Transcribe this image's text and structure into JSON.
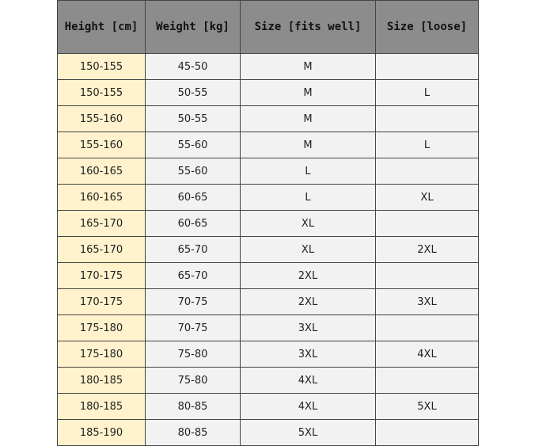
{
  "headers": [
    "Height [cm]",
    "Weight [kg]",
    "Size [fits well]",
    "Size [loose]"
  ],
  "rows": [
    [
      "150-155",
      "45-50",
      "M",
      ""
    ],
    [
      "150-155",
      "50-55",
      "M",
      "L"
    ],
    [
      "155-160",
      "50-55",
      "M",
      ""
    ],
    [
      "155-160",
      "55-60",
      "M",
      "L"
    ],
    [
      "160-165",
      "55-60",
      "L",
      ""
    ],
    [
      "160-165",
      "60-65",
      "L",
      "XL"
    ],
    [
      "165-170",
      "60-65",
      "XL",
      ""
    ],
    [
      "165-170",
      "65-70",
      "XL",
      "2XL"
    ],
    [
      "170-175",
      "65-70",
      "2XL",
      ""
    ],
    [
      "170-175",
      "70-75",
      "2XL",
      "3XL"
    ],
    [
      "175-180",
      "70-75",
      "3XL",
      ""
    ],
    [
      "175-180",
      "75-80",
      "3XL",
      "4XL"
    ],
    [
      "180-185",
      "75-80",
      "4XL",
      ""
    ],
    [
      "180-185",
      "80-85",
      "4XL",
      "5XL"
    ],
    [
      "185-190",
      "80-85",
      "5XL",
      ""
    ]
  ],
  "colors": {
    "header_bg": "#8c8c8c",
    "height_col_bg": "#fff2cc",
    "cell_bg": "#f2f2f2"
  }
}
